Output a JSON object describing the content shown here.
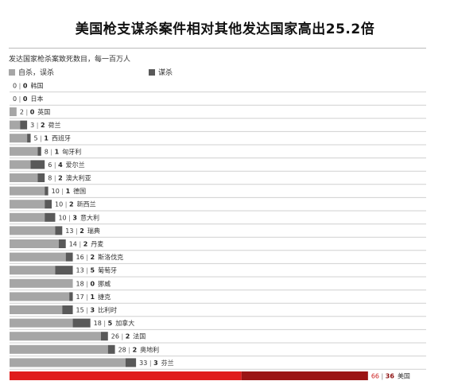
{
  "title": "美国枪支谋杀案件相对其他发达国家高出25.2倍",
  "subtitle": "发达国家枪杀案致死数目，每一百万人",
  "colors": {
    "accidental": "#a6a6a6",
    "homicide": "#595959",
    "us_accidental": "#e01b1b",
    "us_homicide": "#9b1414",
    "gridline": "#d0d0d0"
  },
  "chart_data": {
    "type": "bar",
    "orientation": "horizontal",
    "stacked": true,
    "legend": [
      {
        "name": "自杀，误杀"
      },
      {
        "name": "谋杀"
      }
    ],
    "categories": [
      "韩国",
      "日本",
      "英国",
      "荷兰",
      "西班牙",
      "匈牙利",
      "爱尔兰",
      "澳大利亚",
      "德国",
      "新西兰",
      "意大利",
      "瑞典",
      "丹麦",
      "斯洛伐克",
      "葡萄牙",
      "挪威",
      "捷克",
      "比利时",
      "加拿大",
      "法国",
      "奥地利",
      "芬兰",
      "美国"
    ],
    "series": [
      {
        "name": "自杀，误杀",
        "values": [
          0,
          0,
          2,
          3,
          5,
          8,
          6,
          8,
          10,
          10,
          10,
          13,
          14,
          16,
          13,
          18,
          17,
          15,
          18,
          26,
          28,
          33,
          66
        ]
      },
      {
        "name": "谋杀",
        "values": [
          0,
          0,
          0,
          2,
          1,
          1,
          4,
          2,
          1,
          2,
          3,
          2,
          2,
          2,
          5,
          0,
          1,
          3,
          5,
          2,
          2,
          3,
          36
        ]
      }
    ]
  }
}
